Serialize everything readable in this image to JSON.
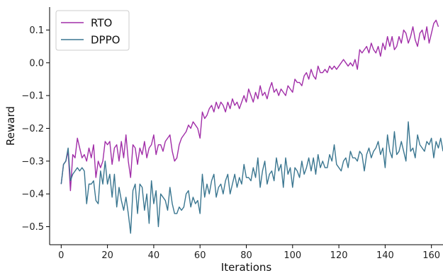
{
  "chart_data": {
    "type": "line",
    "xlabel": "Iterations",
    "ylabel": "Reward",
    "xlim": [
      -5,
      165
    ],
    "ylim": [
      -0.555,
      0.17
    ],
    "x_ticks": [
      0,
      20,
      40,
      60,
      80,
      100,
      120,
      140,
      160
    ],
    "y_ticks": [
      -0.5,
      -0.4,
      -0.3,
      -0.2,
      -0.1,
      0.0,
      0.1
    ],
    "x_tick_labels": [
      "0",
      "20",
      "40",
      "60",
      "80",
      "100",
      "120",
      "140",
      "160"
    ],
    "y_tick_labels": [
      "−0.5",
      "−0.4",
      "−0.3",
      "−0.2",
      "−0.1",
      "0.0",
      "0.1"
    ],
    "grid": false,
    "legend_position": "top-left",
    "series": [
      {
        "name": "RTO",
        "color": "#a12ea8",
        "values": [
          -0.37,
          -0.31,
          -0.3,
          -0.27,
          -0.39,
          -0.28,
          -0.29,
          -0.23,
          -0.26,
          -0.29,
          -0.28,
          -0.3,
          -0.26,
          -0.29,
          -0.25,
          -0.35,
          -0.3,
          -0.32,
          -0.3,
          -0.24,
          -0.25,
          -0.24,
          -0.31,
          -0.26,
          -0.25,
          -0.3,
          -0.24,
          -0.29,
          -0.22,
          -0.3,
          -0.35,
          -0.25,
          -0.26,
          -0.31,
          -0.26,
          -0.28,
          -0.24,
          -0.29,
          -0.26,
          -0.25,
          -0.22,
          -0.28,
          -0.25,
          -0.25,
          -0.27,
          -0.24,
          -0.23,
          -0.22,
          -0.27,
          -0.3,
          -0.29,
          -0.25,
          -0.23,
          -0.22,
          -0.21,
          -0.19,
          -0.2,
          -0.18,
          -0.19,
          -0.2,
          -0.23,
          -0.15,
          -0.17,
          -0.16,
          -0.14,
          -0.13,
          -0.15,
          -0.12,
          -0.14,
          -0.12,
          -0.13,
          -0.15,
          -0.12,
          -0.14,
          -0.11,
          -0.13,
          -0.12,
          -0.14,
          -0.12,
          -0.1,
          -0.12,
          -0.08,
          -0.1,
          -0.12,
          -0.09,
          -0.11,
          -0.07,
          -0.1,
          -0.09,
          -0.11,
          -0.08,
          -0.06,
          -0.09,
          -0.08,
          -0.1,
          -0.08,
          -0.09,
          -0.1,
          -0.07,
          -0.08,
          -0.09,
          -0.05,
          -0.06,
          -0.06,
          -0.07,
          -0.04,
          -0.03,
          -0.05,
          -0.02,
          -0.04,
          -0.05,
          -0.01,
          -0.03,
          -0.03,
          -0.02,
          -0.03,
          -0.01,
          -0.02,
          -0.01,
          -0.02,
          -0.01,
          0.0,
          0.01,
          0.0,
          -0.01,
          0.0,
          -0.01,
          0.01,
          -0.02,
          0.04,
          0.03,
          0.04,
          0.05,
          0.03,
          0.06,
          0.04,
          0.03,
          0.05,
          0.02,
          0.06,
          0.04,
          0.08,
          0.05,
          0.08,
          0.04,
          0.05,
          0.08,
          0.06,
          0.1,
          0.09,
          0.06,
          0.08,
          0.11,
          0.07,
          0.05,
          0.09,
          0.1,
          0.07,
          0.11,
          0.06,
          0.09,
          0.12,
          0.13,
          0.11
        ]
      },
      {
        "name": "DPPO",
        "color": "#3a7690",
        "values": [
          -0.37,
          -0.31,
          -0.3,
          -0.26,
          -0.36,
          -0.34,
          -0.33,
          -0.32,
          -0.33,
          -0.32,
          -0.33,
          -0.43,
          -0.37,
          -0.37,
          -0.36,
          -0.42,
          -0.43,
          -0.33,
          -0.37,
          -0.3,
          -0.37,
          -0.34,
          -0.41,
          -0.34,
          -0.44,
          -0.38,
          -0.42,
          -0.45,
          -0.41,
          -0.46,
          -0.52,
          -0.39,
          -0.37,
          -0.46,
          -0.37,
          -0.38,
          -0.45,
          -0.4,
          -0.49,
          -0.36,
          -0.43,
          -0.39,
          -0.5,
          -0.4,
          -0.41,
          -0.42,
          -0.45,
          -0.38,
          -0.43,
          -0.46,
          -0.46,
          -0.44,
          -0.45,
          -0.44,
          -0.4,
          -0.39,
          -0.44,
          -0.41,
          -0.43,
          -0.42,
          -0.46,
          -0.34,
          -0.41,
          -0.37,
          -0.4,
          -0.36,
          -0.34,
          -0.41,
          -0.38,
          -0.37,
          -0.4,
          -0.36,
          -0.34,
          -0.4,
          -0.37,
          -0.34,
          -0.38,
          -0.35,
          -0.37,
          -0.31,
          -0.35,
          -0.35,
          -0.36,
          -0.32,
          -0.35,
          -0.29,
          -0.38,
          -0.33,
          -0.3,
          -0.37,
          -0.34,
          -0.33,
          -0.36,
          -0.29,
          -0.33,
          -0.31,
          -0.38,
          -0.29,
          -0.34,
          -0.32,
          -0.38,
          -0.32,
          -0.33,
          -0.35,
          -0.3,
          -0.34,
          -0.32,
          -0.29,
          -0.33,
          -0.29,
          -0.34,
          -0.28,
          -0.32,
          -0.3,
          -0.32,
          -0.32,
          -0.28,
          -0.3,
          -0.25,
          -0.31,
          -0.32,
          -0.33,
          -0.3,
          -0.29,
          -0.32,
          -0.27,
          -0.29,
          -0.29,
          -0.3,
          -0.27,
          -0.28,
          -0.33,
          -0.28,
          -0.26,
          -0.29,
          -0.27,
          -0.26,
          -0.24,
          -0.28,
          -0.26,
          -0.32,
          -0.22,
          -0.27,
          -0.29,
          -0.21,
          -0.28,
          -0.27,
          -0.24,
          -0.27,
          -0.3,
          -0.18,
          -0.27,
          -0.26,
          -0.29,
          -0.22,
          -0.25,
          -0.26,
          -0.27,
          -0.24,
          -0.25,
          -0.23,
          -0.29,
          -0.24,
          -0.26,
          -0.23,
          -0.27
        ]
      }
    ]
  }
}
